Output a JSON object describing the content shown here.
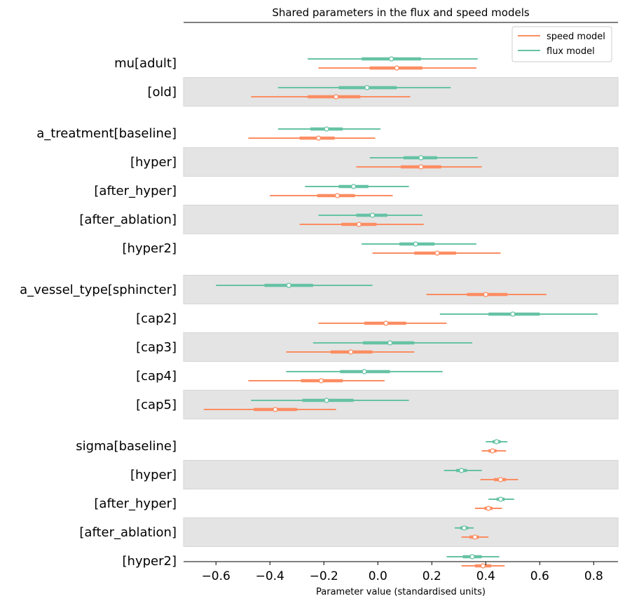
{
  "chart_data": {
    "type": "forest",
    "title": "Shared parameters in the flux and speed models",
    "xlabel": "Parameter value (standardised units)",
    "xlim": [
      -0.72,
      0.89
    ],
    "xticks": [
      -0.6,
      -0.4,
      -0.2,
      0.0,
      0.2,
      0.4,
      0.6,
      0.8
    ],
    "xtick_labels": [
      "−0.6",
      "−0.4",
      "−0.2",
      "0.0",
      "0.2",
      "0.4",
      "0.6",
      "0.8"
    ],
    "legend": {
      "placement": "top-right",
      "entries": [
        {
          "label": "speed model",
          "color": "#fc8d62"
        },
        {
          "label": "flux model",
          "color": "#66c2a5"
        }
      ]
    },
    "series": [
      {
        "name": "flux model",
        "color": "#66c2a5"
      },
      {
        "name": "speed model",
        "color": "#fc8d62"
      }
    ],
    "rows": [
      {
        "label": "mu[adult]",
        "gap_before": false,
        "shaded": false,
        "flux": {
          "median": 0.05,
          "q25": -0.06,
          "q75": 0.16,
          "lo": -0.26,
          "hi": 0.37
        },
        "speed": {
          "median": 0.07,
          "q25": -0.03,
          "q75": 0.165,
          "lo": -0.22,
          "hi": 0.365
        }
      },
      {
        "label": "[old]",
        "gap_before": false,
        "shaded": true,
        "flux": {
          "median": -0.04,
          "q25": -0.145,
          "q75": 0.07,
          "lo": -0.37,
          "hi": 0.27
        },
        "speed": {
          "median": -0.155,
          "q25": -0.26,
          "q75": -0.065,
          "lo": -0.47,
          "hi": 0.12
        }
      },
      {
        "label": "a_treatment[baseline]",
        "gap_before": true,
        "shaded": false,
        "flux": {
          "median": -0.19,
          "q25": -0.25,
          "q75": -0.13,
          "lo": -0.37,
          "hi": 0.01
        },
        "speed": {
          "median": -0.22,
          "q25": -0.29,
          "q75": -0.16,
          "lo": -0.48,
          "hi": -0.01
        }
      },
      {
        "label": "[hyper]",
        "gap_before": false,
        "shaded": true,
        "flux": {
          "median": 0.16,
          "q25": 0.095,
          "q75": 0.22,
          "lo": -0.03,
          "hi": 0.37
        },
        "speed": {
          "median": 0.16,
          "q25": 0.085,
          "q75": 0.235,
          "lo": -0.08,
          "hi": 0.385
        }
      },
      {
        "label": "[after_hyper]",
        "gap_before": false,
        "shaded": false,
        "flux": {
          "median": -0.09,
          "q25": -0.145,
          "q75": -0.035,
          "lo": -0.27,
          "hi": 0.115
        },
        "speed": {
          "median": -0.15,
          "q25": -0.225,
          "q75": -0.085,
          "lo": -0.4,
          "hi": 0.055
        }
      },
      {
        "label": "[after_ablation]",
        "gap_before": false,
        "shaded": true,
        "flux": {
          "median": -0.02,
          "q25": -0.08,
          "q75": 0.035,
          "lo": -0.22,
          "hi": 0.165
        },
        "speed": {
          "median": -0.07,
          "q25": -0.135,
          "q75": -0.005,
          "lo": -0.29,
          "hi": 0.17
        }
      },
      {
        "label": "[hyper2]",
        "gap_before": false,
        "shaded": false,
        "flux": {
          "median": 0.14,
          "q25": 0.08,
          "q75": 0.21,
          "lo": -0.06,
          "hi": 0.365
        },
        "speed": {
          "median": 0.22,
          "q25": 0.135,
          "q75": 0.29,
          "lo": -0.02,
          "hi": 0.455
        }
      },
      {
        "label": "a_vessel_type[sphincter]",
        "gap_before": true,
        "shaded": true,
        "flux": {
          "median": -0.33,
          "q25": -0.42,
          "q75": -0.24,
          "lo": -0.6,
          "hi": -0.02
        },
        "speed": {
          "median": 0.4,
          "q25": 0.33,
          "q75": 0.48,
          "lo": 0.18,
          "hi": 0.625
        }
      },
      {
        "label": "[cap2]",
        "gap_before": false,
        "shaded": false,
        "flux": {
          "median": 0.5,
          "q25": 0.41,
          "q75": 0.6,
          "lo": 0.23,
          "hi": 0.815
        },
        "speed": {
          "median": 0.03,
          "q25": -0.05,
          "q75": 0.105,
          "lo": -0.22,
          "hi": 0.255
        }
      },
      {
        "label": "[cap3]",
        "gap_before": false,
        "shaded": true,
        "flux": {
          "median": 0.045,
          "q25": -0.055,
          "q75": 0.135,
          "lo": -0.24,
          "hi": 0.35
        },
        "speed": {
          "median": -0.1,
          "q25": -0.175,
          "q75": -0.02,
          "lo": -0.34,
          "hi": 0.135
        }
      },
      {
        "label": "[cap4]",
        "gap_before": false,
        "shaded": false,
        "flux": {
          "median": -0.05,
          "q25": -0.14,
          "q75": 0.045,
          "lo": -0.34,
          "hi": 0.24
        },
        "speed": {
          "median": -0.21,
          "q25": -0.285,
          "q75": -0.13,
          "lo": -0.48,
          "hi": 0.025
        }
      },
      {
        "label": "[cap5]",
        "gap_before": false,
        "shaded": true,
        "flux": {
          "median": -0.19,
          "q25": -0.28,
          "q75": -0.09,
          "lo": -0.47,
          "hi": 0.115
        },
        "speed": {
          "median": -0.38,
          "q25": -0.46,
          "q75": -0.3,
          "lo": -0.645,
          "hi": -0.155
        }
      },
      {
        "label": "sigma[baseline]",
        "gap_before": true,
        "shaded": false,
        "flux": {
          "median": 0.44,
          "q25": 0.425,
          "q75": 0.455,
          "lo": 0.4,
          "hi": 0.48
        },
        "speed": {
          "median": 0.425,
          "q25": 0.41,
          "q75": 0.44,
          "lo": 0.385,
          "hi": 0.475
        }
      },
      {
        "label": "[hyper]",
        "gap_before": false,
        "shaded": true,
        "flux": {
          "median": 0.31,
          "q25": 0.29,
          "q75": 0.33,
          "lo": 0.245,
          "hi": 0.385
        },
        "speed": {
          "median": 0.455,
          "q25": 0.43,
          "q75": 0.475,
          "lo": 0.38,
          "hi": 0.52
        }
      },
      {
        "label": "[after_hyper]",
        "gap_before": false,
        "shaded": false,
        "flux": {
          "median": 0.455,
          "q25": 0.44,
          "q75": 0.47,
          "lo": 0.41,
          "hi": 0.505
        },
        "speed": {
          "median": 0.41,
          "q25": 0.395,
          "q75": 0.425,
          "lo": 0.36,
          "hi": 0.46
        }
      },
      {
        "label": "[after_ablation]",
        "gap_before": false,
        "shaded": true,
        "flux": {
          "median": 0.32,
          "q25": 0.305,
          "q75": 0.335,
          "lo": 0.285,
          "hi": 0.355
        },
        "speed": {
          "median": 0.36,
          "q25": 0.34,
          "q75": 0.375,
          "lo": 0.31,
          "hi": 0.41
        }
      },
      {
        "label": "[hyper2]",
        "gap_before": false,
        "shaded": false,
        "flux": {
          "median": 0.35,
          "q25": 0.315,
          "q75": 0.385,
          "lo": 0.255,
          "hi": 0.45
        },
        "speed": {
          "median": 0.39,
          "q25": 0.36,
          "q75": 0.42,
          "lo": 0.31,
          "hi": 0.47
        }
      }
    ]
  }
}
